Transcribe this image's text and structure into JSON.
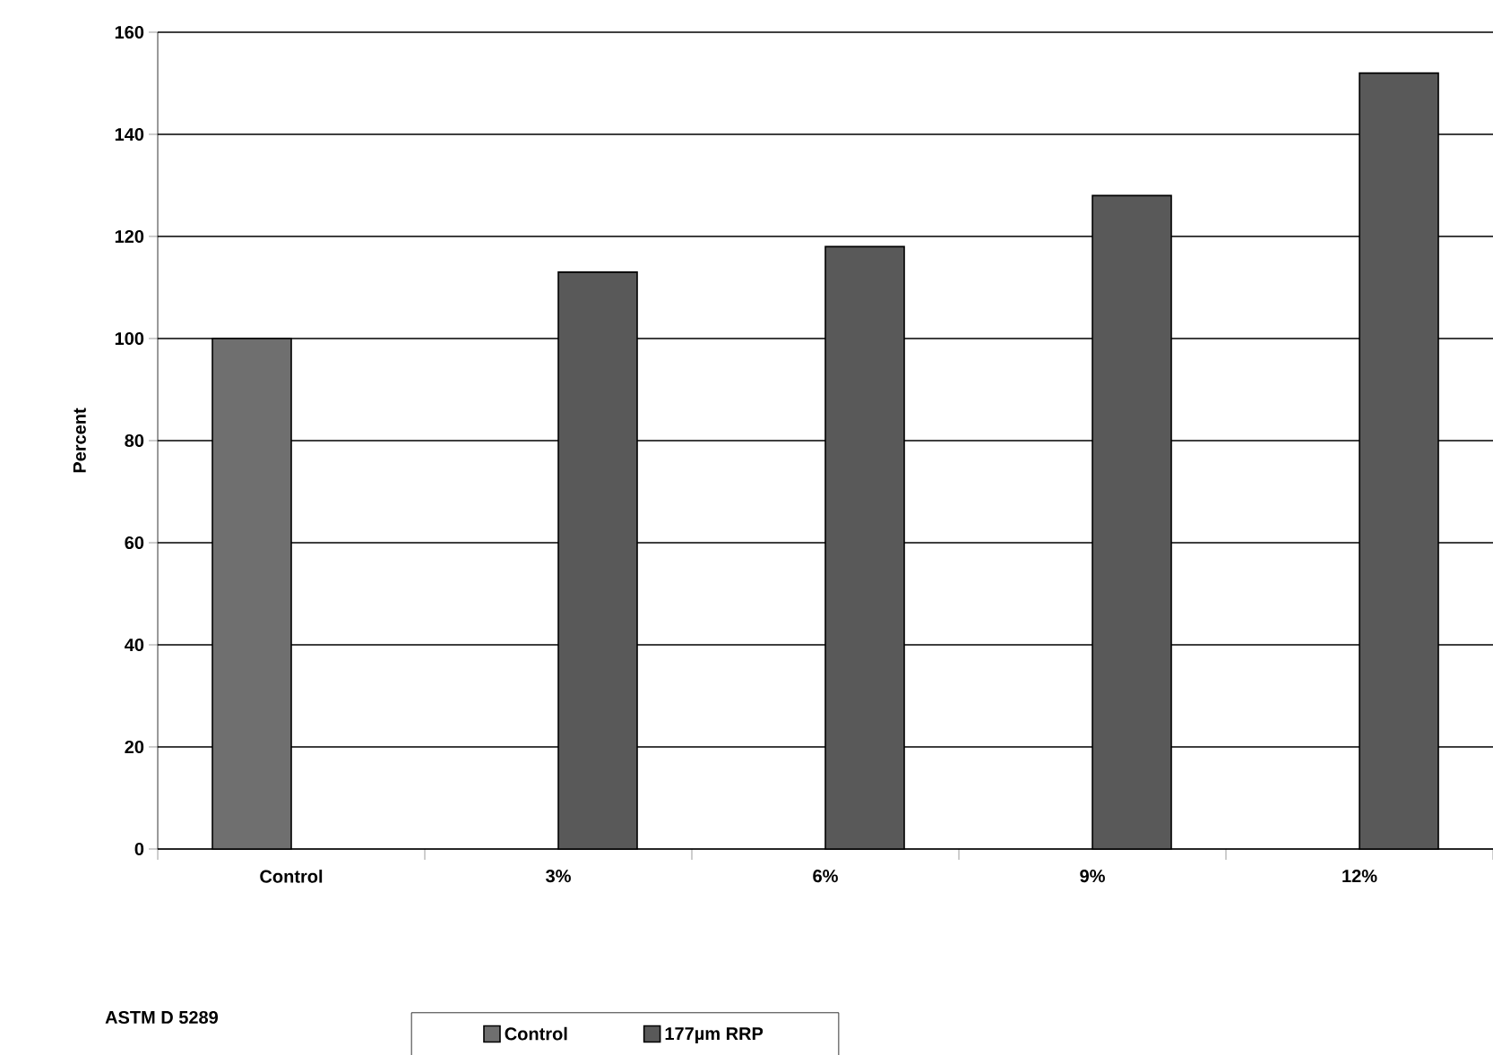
{
  "chart_data": {
    "type": "bar",
    "ylabel": "Percent",
    "categories": [
      "Control",
      "3%",
      "6%",
      "9%",
      "12%"
    ],
    "series": [
      {
        "name": "Control",
        "color": "#6f6f6f",
        "values": [
          100,
          null,
          null,
          null,
          null
        ]
      },
      {
        "name": "177µm RRP",
        "color": "#595959",
        "values": [
          null,
          113,
          118,
          128,
          152
        ]
      }
    ],
    "ylim": [
      0,
      160
    ],
    "yticks": [
      0,
      20,
      40,
      60,
      80,
      100,
      120,
      140,
      160
    ],
    "grid": "y",
    "legend": "bottom",
    "annotations": [
      "ASTM D 5289"
    ]
  }
}
